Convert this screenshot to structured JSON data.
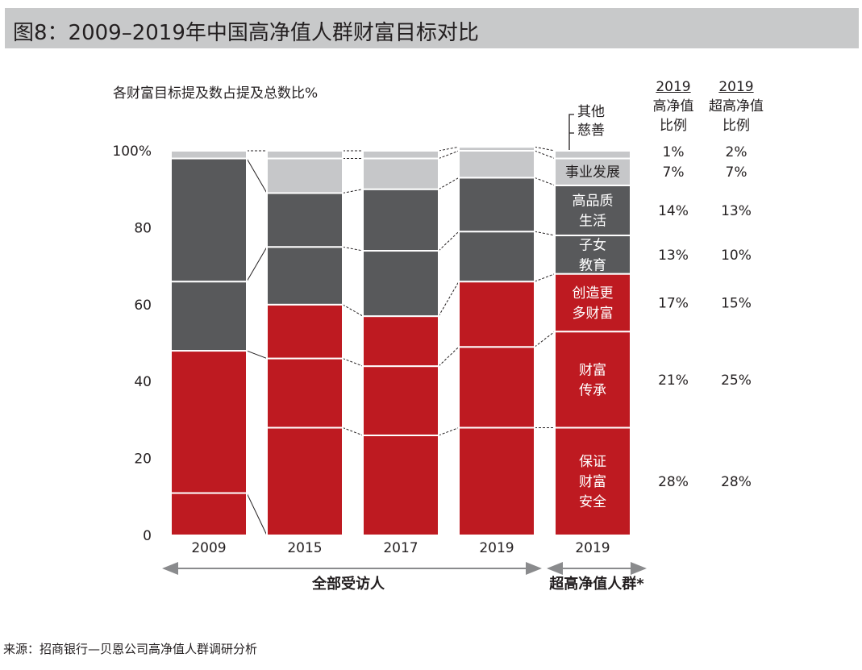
{
  "title": "图8：2009–2019年中国高净值人群财富目标对比",
  "source": "来源：招商银行—贝恩公司高净值人群调研分析",
  "colors": {
    "red": "#be1a21",
    "dark": "#58595b",
    "light": "#c6c7c9",
    "white": "#ffffff"
  },
  "legend_other": [
    "其他",
    "慈善"
  ],
  "columns": {
    "hnw": {
      "year": "2019",
      "line1": "高净值",
      "line2": "比例"
    },
    "uhnw": {
      "year": "2019",
      "line1": "超高净值",
      "line2": "比例"
    }
  },
  "chart_data": {
    "type": "stacked-bar",
    "title": "各财富目标提及数占提及总数比%",
    "ylim": [
      0,
      100
    ],
    "yticks": [
      "0",
      "20",
      "40",
      "60",
      "80",
      "100%"
    ],
    "ytick_values": [
      0,
      20,
      40,
      60,
      80,
      100
    ],
    "bars": [
      {
        "label": "2009",
        "segments": [
          11,
          37,
          18,
          32,
          2
        ]
      },
      {
        "label": "2015",
        "segments": [
          28,
          18,
          14,
          15,
          14,
          9,
          2
        ]
      },
      {
        "label": "2017",
        "segments": [
          26,
          18,
          13,
          17,
          16,
          8,
          2
        ]
      },
      {
        "label": "2019",
        "segments": [
          28,
          21,
          17,
          13,
          14,
          7,
          1
        ]
      },
      {
        "label": "2019",
        "segments": [
          28,
          25,
          15,
          10,
          13,
          7,
          2
        ]
      }
    ],
    "segment_colors": [
      [
        "red",
        "red",
        "dark",
        "dark",
        "light"
      ],
      [
        "red",
        "red",
        "red",
        "dark",
        "dark",
        "light",
        "light"
      ],
      [
        "red",
        "red",
        "red",
        "dark",
        "dark",
        "light",
        "light"
      ],
      [
        "red",
        "red",
        "red",
        "dark",
        "dark",
        "light",
        "light"
      ],
      [
        "red",
        "red",
        "red",
        "dark",
        "dark",
        "light",
        "light"
      ]
    ],
    "categories": [
      "保证财富安全",
      "财富传承",
      "创造更多财富",
      "子女教育",
      "高品质生活",
      "事业发展",
      "其他慈善"
    ],
    "segment_labels": [
      [
        "保证",
        "财富",
        "安全"
      ],
      [
        "财富",
        "传承"
      ],
      [
        "创造更",
        "多财富"
      ],
      [
        "子女",
        "教育"
      ],
      [
        "高品质",
        "生活"
      ],
      [
        "事业发展"
      ],
      []
    ],
    "hnw_2019": [
      "28%",
      "21%",
      "17%",
      "13%",
      "14%",
      "7%",
      "1%"
    ],
    "uhnw_2019": [
      "28%",
      "25%",
      "15%",
      "10%",
      "13%",
      "7%",
      "2%"
    ],
    "group_labels": [
      "全部受访人",
      "超高净值人群*"
    ]
  }
}
